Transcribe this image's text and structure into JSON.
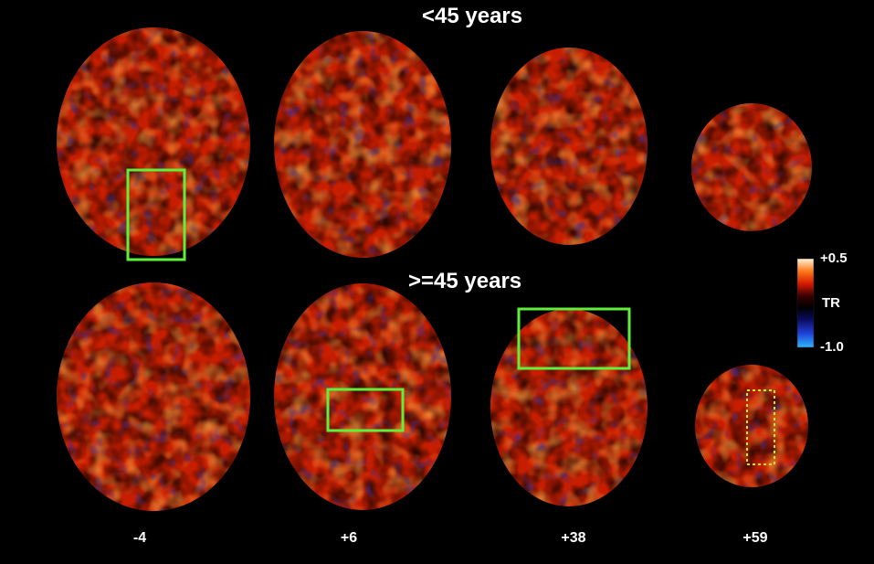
{
  "rows": [
    {
      "title": "<45 years"
    },
    {
      "title": ">=45 years"
    }
  ],
  "slices": [
    {
      "label": "-4"
    },
    {
      "label": "+6"
    },
    {
      "label": "+38"
    },
    {
      "label": "+59"
    }
  ],
  "colorbar": {
    "max_label": "+0.5",
    "mid_label": "TR",
    "min_label": "-1.0",
    "colors": [
      "#fff3d6",
      "#ff7a1a",
      "#d61a00",
      "#3a0000",
      "#000000",
      "#0a0a5a",
      "#1f3fd6",
      "#2fb6ff"
    ]
  },
  "colors": {
    "background": "#000000",
    "brain_base": "#c81e00",
    "hot": "#ffb24a",
    "negative": "#2432a8",
    "highlight_box": "#5ff03c",
    "dotted_box": "#b8f22a"
  }
}
